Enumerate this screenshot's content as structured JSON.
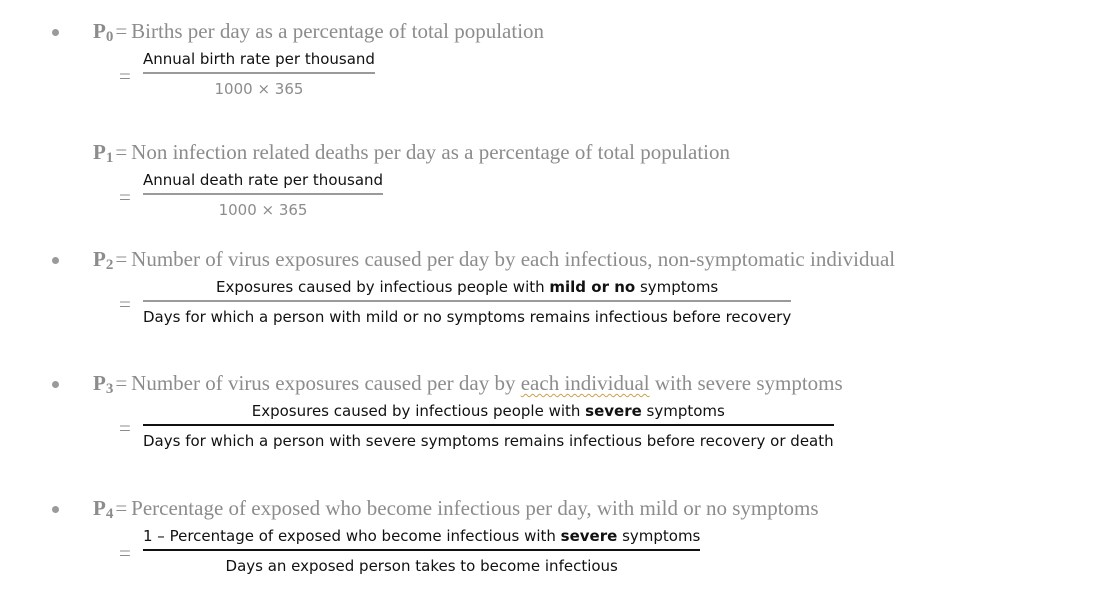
{
  "definitions": [
    {
      "symbol": "P",
      "subscript": "0",
      "equals": "=",
      "text": "Births per day as a percentage of total population",
      "numerator": "Annual birth rate per thousand",
      "denominator": "1000 × 365"
    },
    {
      "symbol": "P",
      "subscript": "1",
      "equals": "=",
      "text": "Non infection related deaths per day as a percentage of total population",
      "numerator": "Annual death rate per thousand",
      "denominator": "1000 × 365"
    },
    {
      "symbol": "P",
      "subscript": "2",
      "equals": "=",
      "text": "Number of virus exposures caused per day by each infectious, non-symptomatic individual",
      "numerator_pre": "Exposures caused by infectious people with ",
      "numerator_bold": "mild or no",
      "numerator_post": " symptoms",
      "denominator": "Days for which a person with mild or no symptoms remains infectious before recovery"
    },
    {
      "symbol": "P",
      "subscript": "3",
      "equals": "=",
      "text_pre": "Number of virus exposures caused per day by ",
      "text_flagged": "each individual",
      "text_post": " with severe symptoms",
      "numerator_pre": "Exposures caused by infectious people with ",
      "numerator_bold": "severe",
      "numerator_post": " symptoms",
      "denominator": "Days for which a person with severe symptoms remains infectious before recovery or death"
    },
    {
      "symbol": "P",
      "subscript": "4",
      "equals": "=",
      "text": "Percentage of exposed who become infectious per day, with mild or no symptoms",
      "numerator_pre": "1 – Percentage of exposed who become infectious with ",
      "numerator_bold": "severe",
      "numerator_post": " symptoms",
      "denominator": "Days an exposed person takes to become infectious"
    }
  ],
  "colors": {
    "definition_text": "#8c8c8c",
    "formula_text": "#111111",
    "bullet": "#9a9a9a",
    "spellcheck_underline": "#c9a24a"
  }
}
